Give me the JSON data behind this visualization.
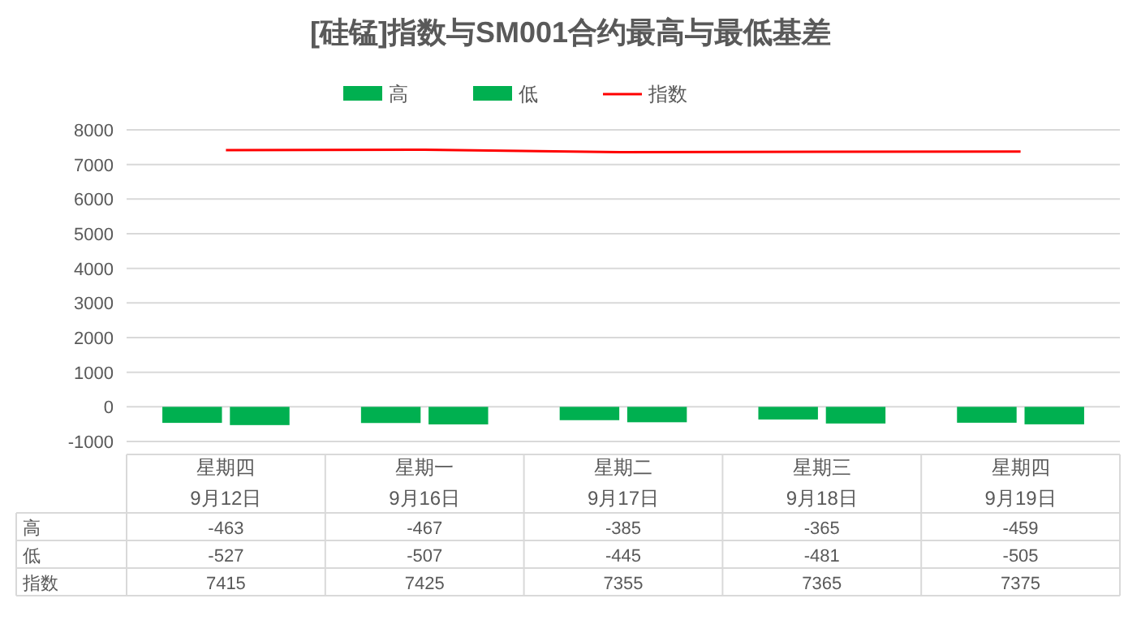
{
  "chart_data": {
    "type": "bar",
    "title": "[硅锰]指数与SM001合约最高与最低基差",
    "categories": [
      "星期四\n9月12日",
      "星期一\n9月16日",
      "星期二\n9月17日",
      "星期三\n9月18日",
      "星期四\n9月19日"
    ],
    "series": [
      {
        "name": "高",
        "color": "#00b050",
        "values": [
          -463,
          -467,
          -385,
          -365,
          -459
        ]
      },
      {
        "name": "低",
        "color": "#00b050",
        "values": [
          -527,
          -507,
          -445,
          -481,
          -505
        ]
      },
      {
        "name": "指数",
        "type": "line",
        "color": "#ff0000",
        "values": [
          7415,
          7425,
          7355,
          7365,
          7375
        ]
      }
    ],
    "ylim": [
      -1000,
      8000
    ],
    "yticks": [
      -1000,
      0,
      1000,
      2000,
      3000,
      4000,
      5000,
      6000,
      7000,
      8000
    ],
    "grid": "y",
    "legend": "top",
    "data_labels": true,
    "marker": "none",
    "line_style": "solid"
  }
}
